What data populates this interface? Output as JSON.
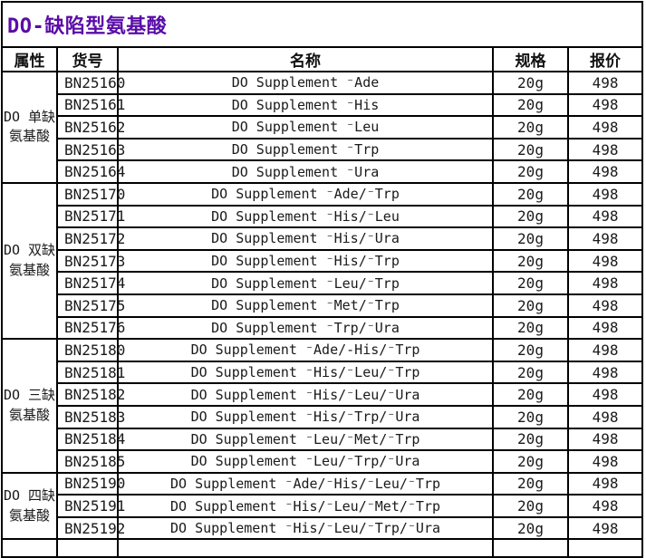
{
  "page_title": "DO-缺陷型氨基酸",
  "colors": {
    "title_text": "#5a0ca8",
    "border": "#000000",
    "body_text": "#1a1a1a",
    "background": "#ffffff"
  },
  "table": {
    "headers": [
      "属性",
      "货号",
      "名称",
      "规格",
      "报价"
    ],
    "groups": [
      {
        "attribute_line1": "DO 单缺",
        "attribute_line2": "氨基酸",
        "rows": [
          {
            "catalog": "BN25160",
            "name": "DO Supplement ⁻Ade",
            "spec": "20g",
            "price": "498"
          },
          {
            "catalog": "BN25161",
            "name": "DO Supplement ⁻His",
            "spec": "20g",
            "price": "498"
          },
          {
            "catalog": "BN25162",
            "name": "DO Supplement ⁻Leu",
            "spec": "20g",
            "price": "498"
          },
          {
            "catalog": "BN25163",
            "name": "DO Supplement ⁻Trp",
            "spec": "20g",
            "price": "498"
          },
          {
            "catalog": "BN25164",
            "name": "DO Supplement ⁻Ura",
            "spec": "20g",
            "price": "498"
          }
        ]
      },
      {
        "attribute_line1": "DO 双缺",
        "attribute_line2": "氨基酸",
        "rows": [
          {
            "catalog": "BN25170",
            "name": "DO Supplement ⁻Ade/⁻Trp",
            "spec": "20g",
            "price": "498"
          },
          {
            "catalog": "BN25171",
            "name": "DO Supplement ⁻His/⁻Leu",
            "spec": "20g",
            "price": "498"
          },
          {
            "catalog": "BN25172",
            "name": "DO Supplement ⁻His/⁻Ura",
            "spec": "20g",
            "price": "498"
          },
          {
            "catalog": "BN25173",
            "name": "DO Supplement ⁻His/⁻Trp",
            "spec": "20g",
            "price": "498"
          },
          {
            "catalog": "BN25174",
            "name": "DO Supplement ⁻Leu/⁻Trp",
            "spec": "20g",
            "price": "498"
          },
          {
            "catalog": "BN25175",
            "name": "DO Supplement ⁻Met/⁻Trp",
            "spec": "20g",
            "price": "498"
          },
          {
            "catalog": "BN25176",
            "name": "DO Supplement ⁻Trp/⁻Ura",
            "spec": "20g",
            "price": "498"
          }
        ]
      },
      {
        "attribute_line1": "DO 三缺",
        "attribute_line2": "氨基酸",
        "rows": [
          {
            "catalog": "BN25180",
            "name": "DO Supplement ⁻Ade/-His/⁻Trp",
            "spec": "20g",
            "price": "498"
          },
          {
            "catalog": "BN25181",
            "name": "DO Supplement ⁻His/⁻Leu/⁻Trp",
            "spec": "20g",
            "price": "498"
          },
          {
            "catalog": "BN25182",
            "name": "DO Supplement ⁻His/⁻Leu/⁻Ura",
            "spec": "20g",
            "price": "498"
          },
          {
            "catalog": "BN25183",
            "name": "DO Supplement ⁻His/⁻Trp/⁻Ura",
            "spec": "20g",
            "price": "498"
          },
          {
            "catalog": "BN25184",
            "name": "DO Supplement ⁻Leu/⁻Met/⁻Trp",
            "spec": "20g",
            "price": "498"
          },
          {
            "catalog": "BN25185",
            "name": "DO Supplement ⁻Leu/⁻Trp/⁻Ura",
            "spec": "20g",
            "price": "498"
          }
        ]
      },
      {
        "attribute_line1": "DO 四缺",
        "attribute_line2": "氨基酸",
        "rows": [
          {
            "catalog": "BN25190",
            "name": "DO Supplement ⁻Ade/⁻His/⁻Leu/⁻Trp",
            "spec": "20g",
            "price": "498"
          },
          {
            "catalog": "BN25191",
            "name": "DO Supplement ⁻His/⁻Leu/⁻Met/⁻Trp",
            "spec": "20g",
            "price": "498"
          },
          {
            "catalog": "BN25192",
            "name": "DO Supplement ⁻His/⁻Leu/⁻Trp/⁻Ura",
            "spec": "20g",
            "price": "498"
          }
        ]
      }
    ]
  }
}
